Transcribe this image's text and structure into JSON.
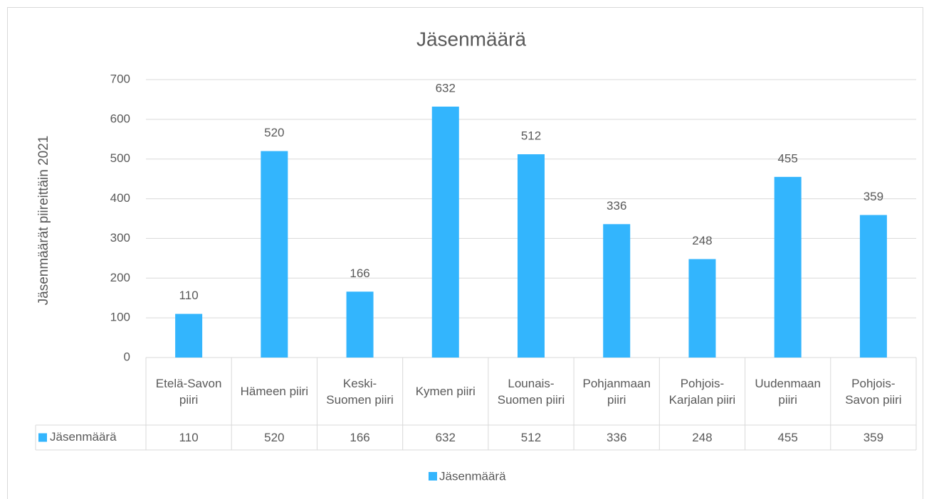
{
  "chart_data": {
    "type": "bar",
    "title": "Jäsenmäärä",
    "y_label": "Jäsenmäärät piireittäin 2021",
    "categories": [
      "Etelä-Savon piiri",
      "Hämeen piiri",
      "Keski-Suomen piiri",
      "Kymen piiri",
      "Lounais-Suomen piiri",
      "Pohjanmaan piiri",
      "Pohjois-Karjalan piiri",
      "Uudenmaan piiri",
      "Pohjois-Savon piiri"
    ],
    "series": [
      {
        "name": "Jäsenmäärä",
        "color": "#33b5fd",
        "values": [
          110,
          520,
          166,
          632,
          512,
          336,
          248,
          455,
          359
        ]
      }
    ],
    "ylim": [
      0,
      700
    ],
    "yticks": [
      0,
      100,
      200,
      300,
      400,
      500,
      600,
      700
    ],
    "grid": true,
    "legend": "bottom",
    "data_table": true
  }
}
